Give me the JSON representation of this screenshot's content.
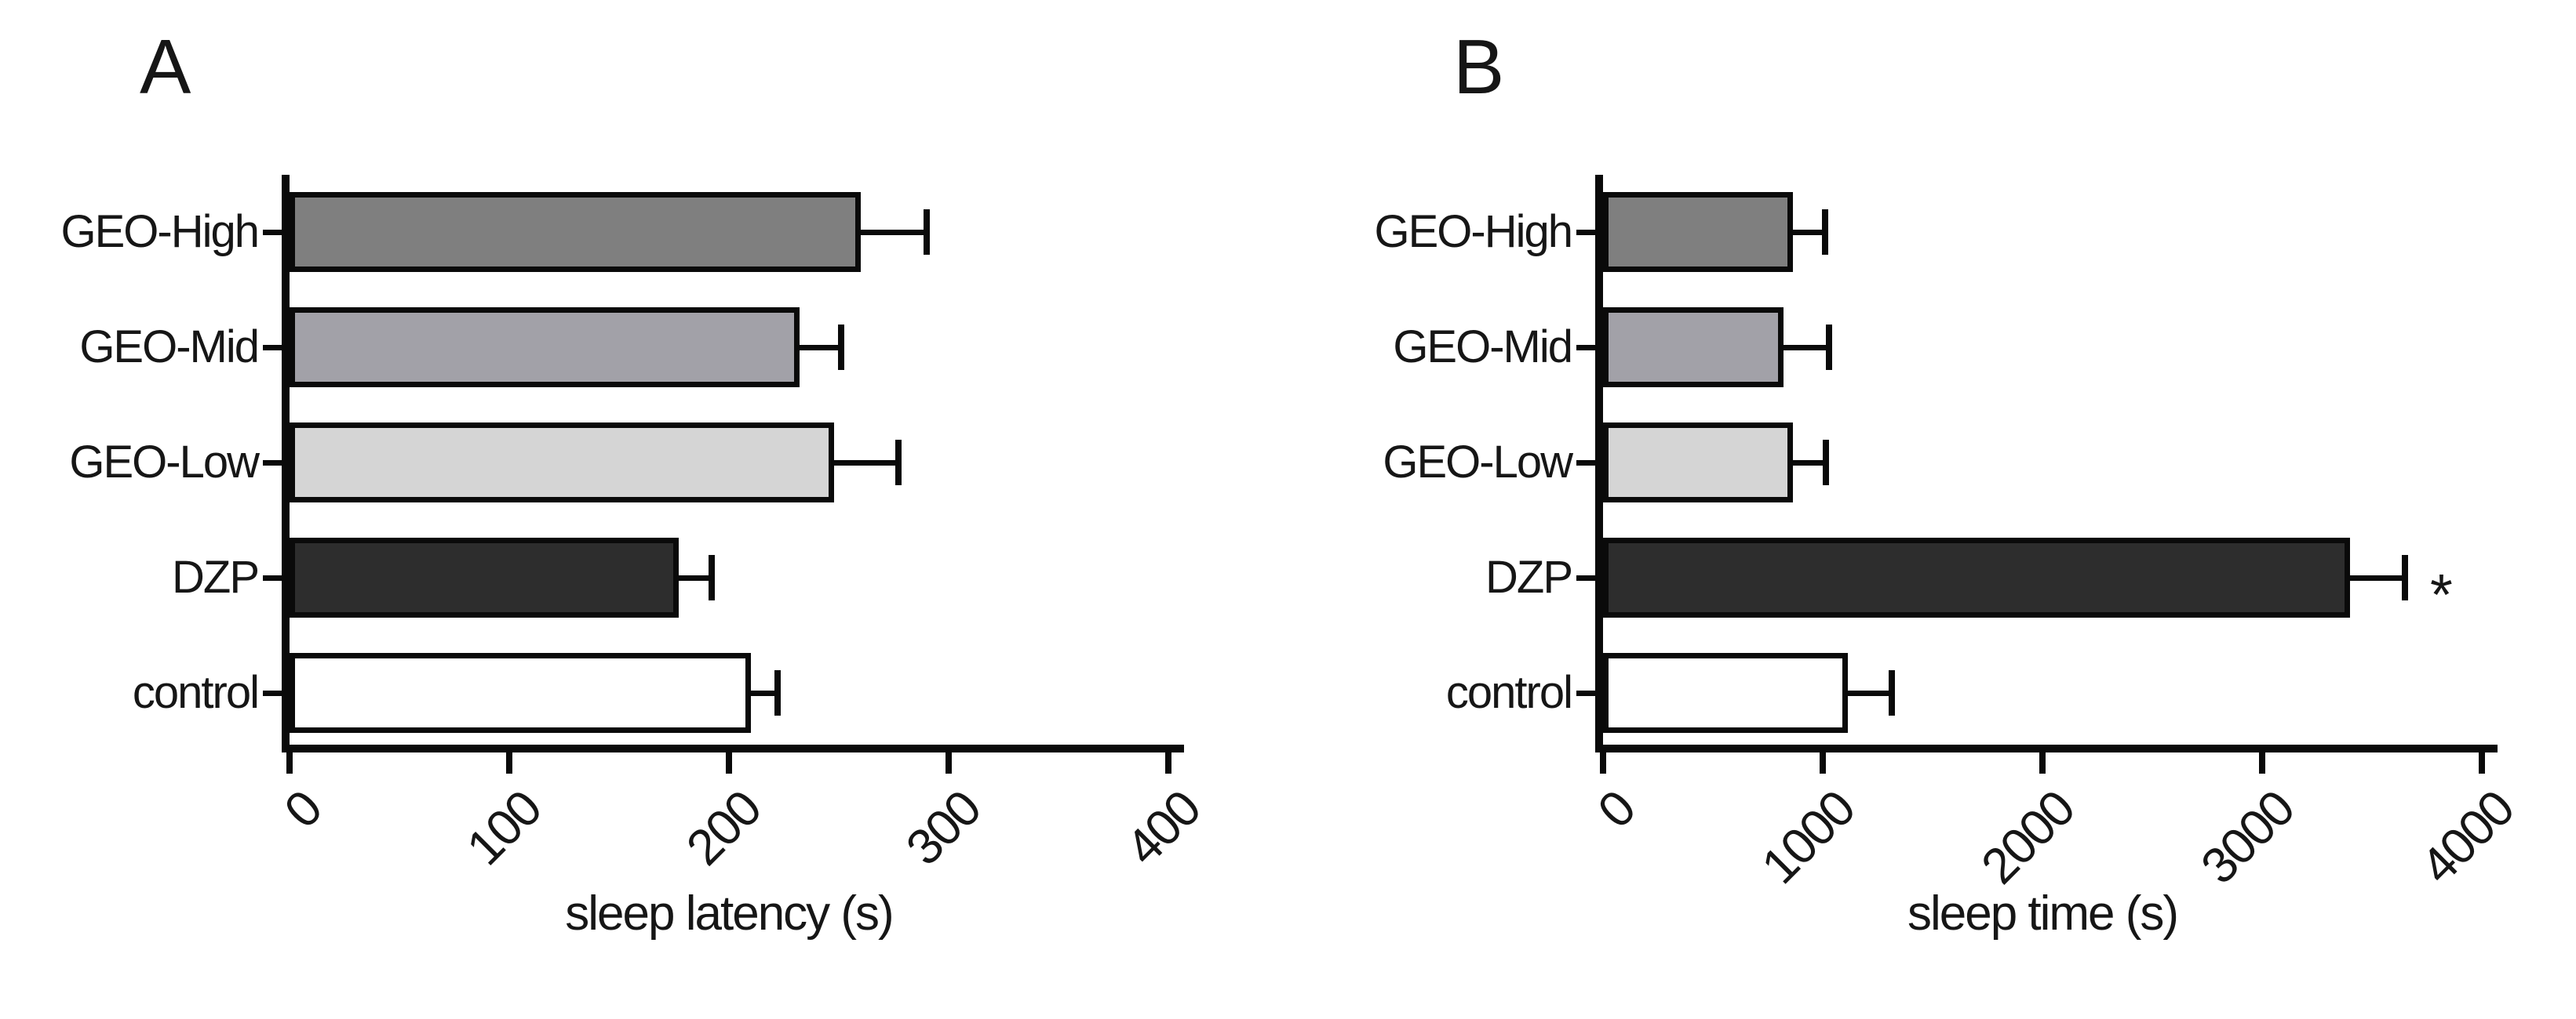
{
  "page": {
    "background": "#ffffff",
    "text_color": "#161616",
    "axis_color": "#0a0a0a"
  },
  "chart_data": [
    {
      "type": "bar",
      "orientation": "horizontal",
      "panel_label": "A",
      "xlabel": "sleep latency (s)",
      "categories": [
        "GEO-High",
        "GEO-Mid",
        "GEO-Low",
        "DZP",
        "control"
      ],
      "values": [
        260,
        232,
        248,
        177,
        210
      ],
      "errors_plus": [
        30,
        19,
        29,
        15,
        12
      ],
      "annotations": [
        "",
        "",
        "",
        "",
        ""
      ],
      "bar_colors": [
        "#7f7f7f",
        "#a2a1a8",
        "#d5d5d5",
        "#2d2d2d",
        "#ffffff"
      ],
      "bar_border_color": "#0a0a0a",
      "xlim": [
        0,
        400
      ],
      "xticks": [
        "0",
        "100",
        "200",
        "300",
        "400"
      ],
      "grid": false,
      "legend": false,
      "error_bars": "plus-direction-with-cap"
    },
    {
      "type": "bar",
      "orientation": "horizontal",
      "panel_label": "B",
      "xlabel": "sleep time (s)",
      "categories": [
        "GEO-High",
        "GEO-Mid",
        "GEO-Low",
        "DZP",
        "control"
      ],
      "values": [
        865,
        820,
        865,
        3400,
        1115
      ],
      "errors_plus": [
        145,
        210,
        150,
        250,
        200
      ],
      "annotations": [
        "",
        "",
        "",
        "*",
        ""
      ],
      "bar_colors": [
        "#7f7f7f",
        "#a2a1a8",
        "#d5d5d5",
        "#2d2d2d",
        "#ffffff"
      ],
      "bar_border_color": "#0a0a0a",
      "xlim": [
        0,
        4000
      ],
      "xticks": [
        "0",
        "1000",
        "2000",
        "3000",
        "4000"
      ],
      "grid": false,
      "legend": false,
      "error_bars": "plus-direction-with-cap"
    }
  ]
}
